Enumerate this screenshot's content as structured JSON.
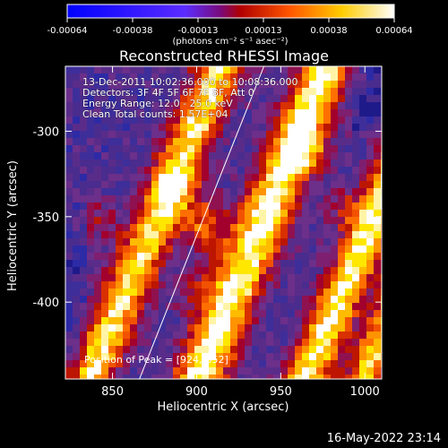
{
  "colorbar": {
    "ticks": [
      "-0.00064",
      "-0.00038",
      "-0.00013",
      "0.00013",
      "0.00038",
      "0.00064"
    ],
    "unit_label": "(photons cm⁻² s⁻¹ asec⁻²)"
  },
  "chart_data": {
    "type": "heatmap",
    "title": "Reconstructed RHESSI Image",
    "xlabel": "Heliocentric X (arcsec)",
    "ylabel": "Heliocentric Y (arcsec)",
    "xlim": [
      822,
      1010
    ],
    "ylim": [
      -445,
      -262
    ],
    "x_ticks": [
      850,
      900,
      950,
      1000
    ],
    "y_ticks": [
      -300,
      -350,
      -400
    ],
    "x_ticks_labels": [
      "850",
      "900",
      "950",
      "1000"
    ],
    "y_ticks_labels": [
      "-300",
      "-350",
      "-400"
    ],
    "color_range": [
      -0.00064,
      0.00064
    ],
    "line": {
      "points": [
        [
          866,
          -445
        ],
        [
          940,
          -262
        ]
      ]
    },
    "bright_regions": [
      [
        903,
        -352
      ],
      [
        885,
        -332
      ],
      [
        896,
        -392
      ],
      [
        967,
        -311
      ],
      [
        985,
        -343
      ],
      [
        840,
        -350
      ]
    ]
  },
  "annotations": {
    "time_range": "13-Dec-2011 10:02:36.000 to 10:08:36.000",
    "detectors": "Detectors: 3F 4F 5F 6F 7F 8F, Att 0",
    "energy_range": "Energy Range: 12.0 - 25.0 keV",
    "clean_counts": "Clean     Total counts: 1.57E+04",
    "peak_position": "Position of Peak = [924,-352]"
  },
  "footer": {
    "date_text": "16-May-2022 23:14"
  }
}
